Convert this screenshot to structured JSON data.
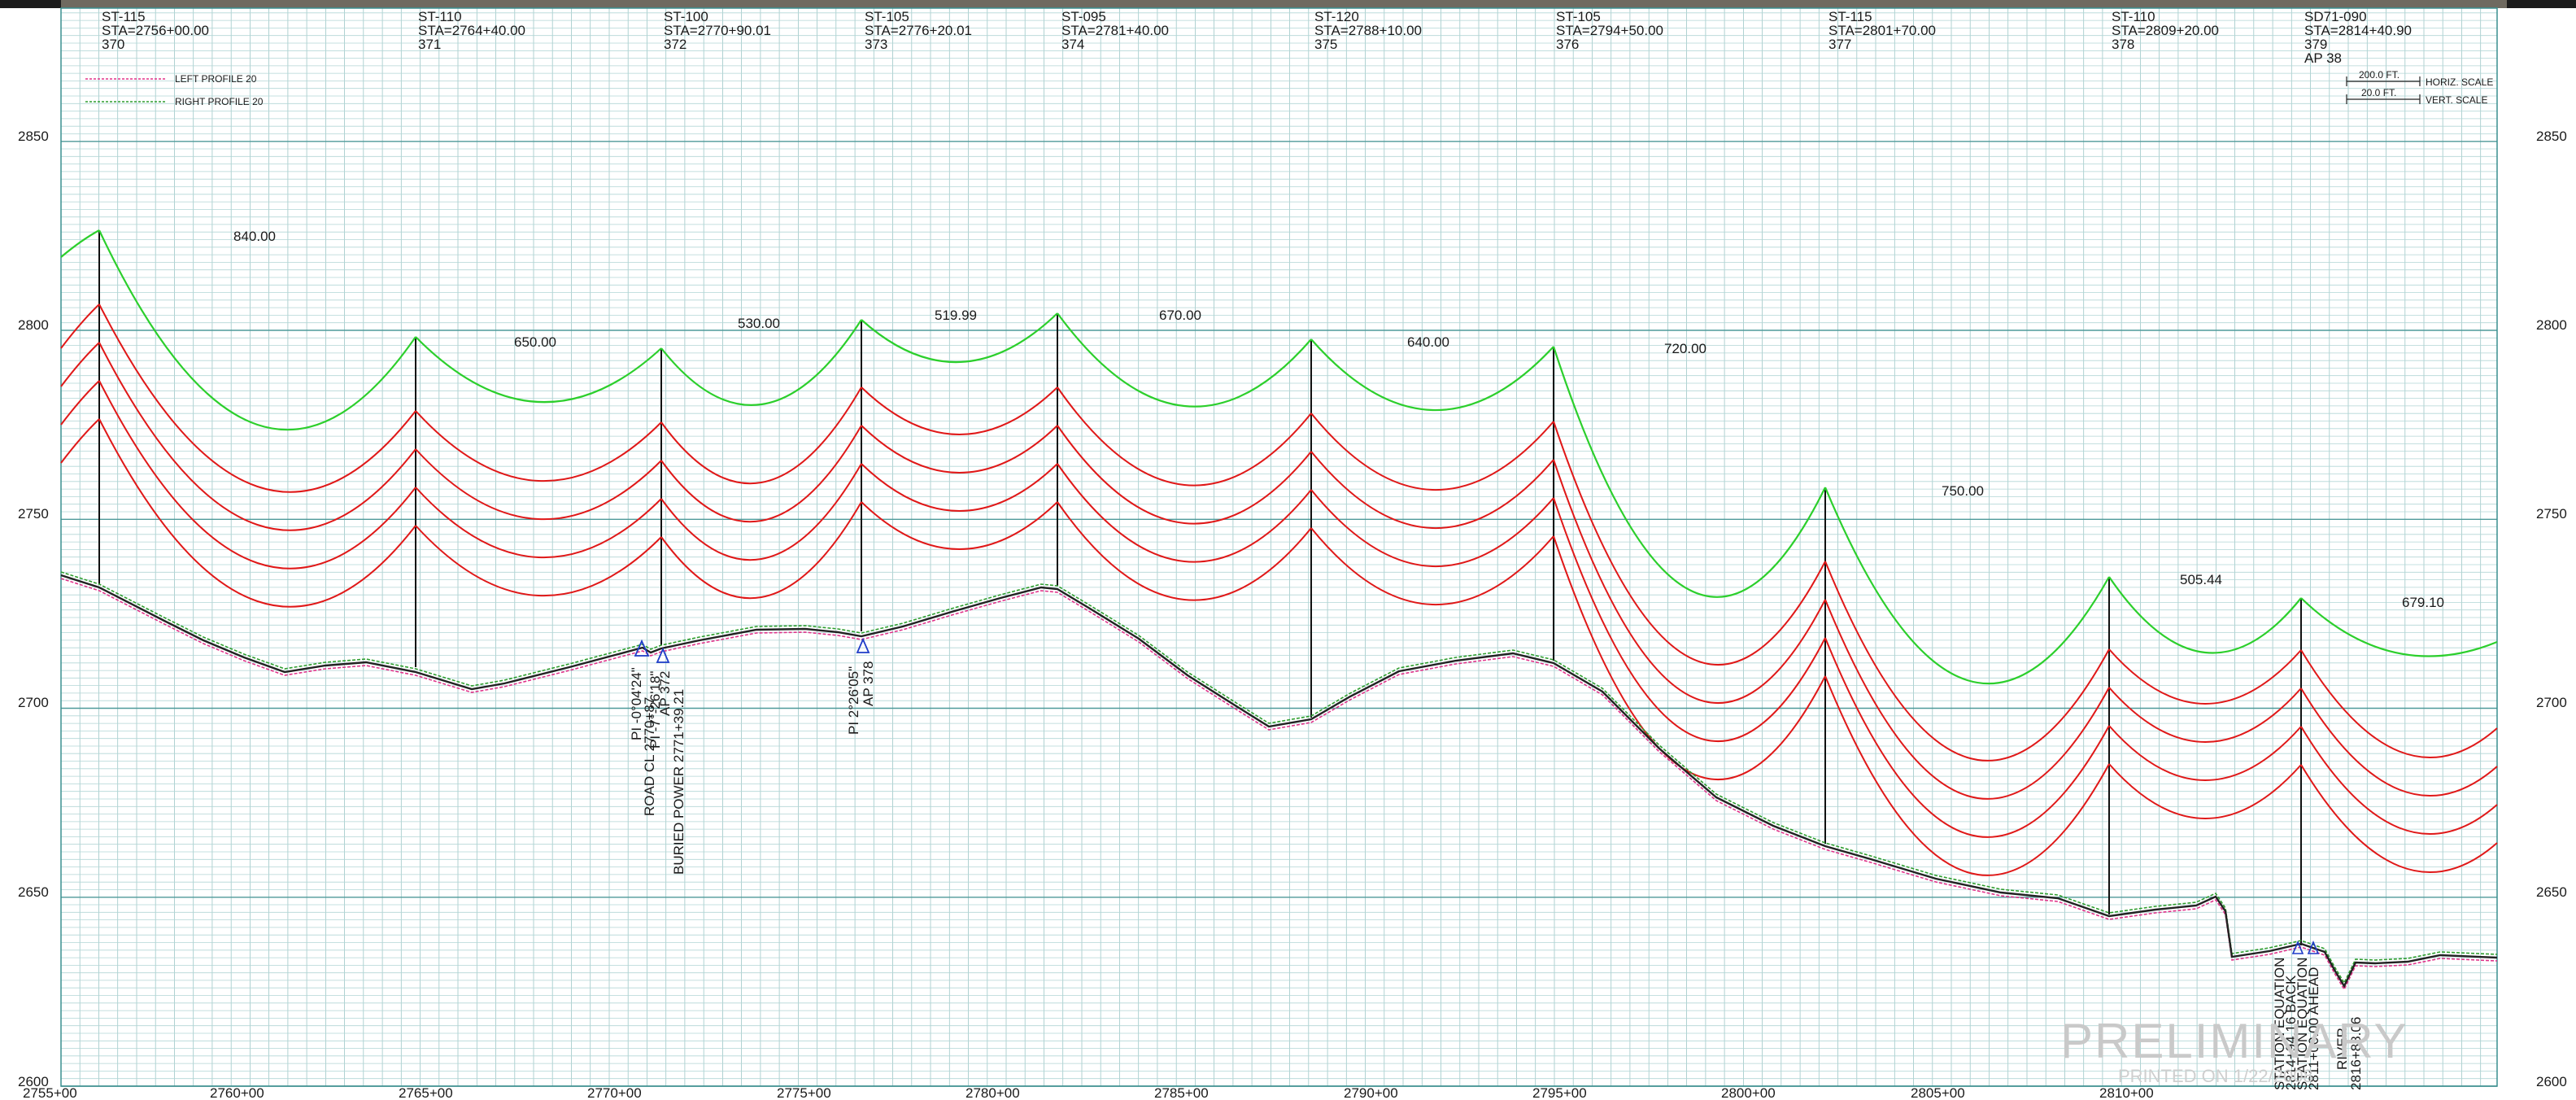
{
  "legend": [
    {
      "label": "LEFT PROFILE 20",
      "color": "#e0338a"
    },
    {
      "label": "RIGHT PROFILE 20",
      "color": "#2f9e2f"
    }
  ],
  "scale_note": {
    "horiz_value": "200.0 FT.",
    "horiz_label": "HORIZ. SCALE",
    "vert_value": "20.0 FT.",
    "vert_label": "VERT. SCALE"
  },
  "elevation_ticks": [
    "2600",
    "2650",
    "2700",
    "2750",
    "2800",
    "2850"
  ],
  "station_ticks": [
    "2755+00",
    "2760+00",
    "2765+00",
    "2770+00",
    "2775+00",
    "2780+00",
    "2785+00",
    "2790+00",
    "2795+00",
    "2800+00",
    "2805+00",
    "2810+00"
  ],
  "structures": [
    {
      "type": "ST-115",
      "sta": "STA=2756+00.00",
      "num": "370",
      "extra": ""
    },
    {
      "type": "ST-110",
      "sta": "STA=2764+40.00",
      "num": "371",
      "extra": ""
    },
    {
      "type": "ST-100",
      "sta": "STA=2770+90.01",
      "num": "372",
      "extra": ""
    },
    {
      "type": "ST-105",
      "sta": "STA=2776+20.01",
      "num": "373",
      "extra": ""
    },
    {
      "type": "ST-095",
      "sta": "STA=2781+40.00",
      "num": "374",
      "extra": ""
    },
    {
      "type": "ST-120",
      "sta": "STA=2788+10.00",
      "num": "375",
      "extra": ""
    },
    {
      "type": "ST-105",
      "sta": "STA=2794+50.00",
      "num": "376",
      "extra": ""
    },
    {
      "type": "ST-115",
      "sta": "STA=2801+70.00",
      "num": "377",
      "extra": ""
    },
    {
      "type": "ST-110",
      "sta": "STA=2809+20.00",
      "num": "378",
      "extra": ""
    },
    {
      "type": "SD71-090",
      "sta": "STA=2814+40.90",
      "num": "379",
      "extra": "AP 38"
    }
  ],
  "spans": [
    "840.00",
    "650.00",
    "530.00",
    "519.99",
    "670.00",
    "640.00",
    "720.00",
    "750.00",
    "505.44",
    "679.10"
  ],
  "annotations": [
    {
      "lines": [
        "PI -0°04'24\"",
        "ROAD CL 2770+87",
        "PI -7°-26'18\"",
        "AP 372",
        "BURIED POWER 2771+39.21"
      ]
    },
    {
      "lines": [
        "PI 2°26'05\"",
        "AP 378"
      ]
    },
    {
      "lines": [
        "STATION EQUATION",
        "2814+94.16 BACK",
        "STATION EQUATION",
        "2811+00.00 AHEAD"
      ]
    },
    {
      "lines": [
        "RIVER",
        "2816+88.06"
      ]
    }
  ],
  "watermark": {
    "title": "PRELIMINARY",
    "subtitle": "PRINTED ON 1/22/2008"
  }
}
